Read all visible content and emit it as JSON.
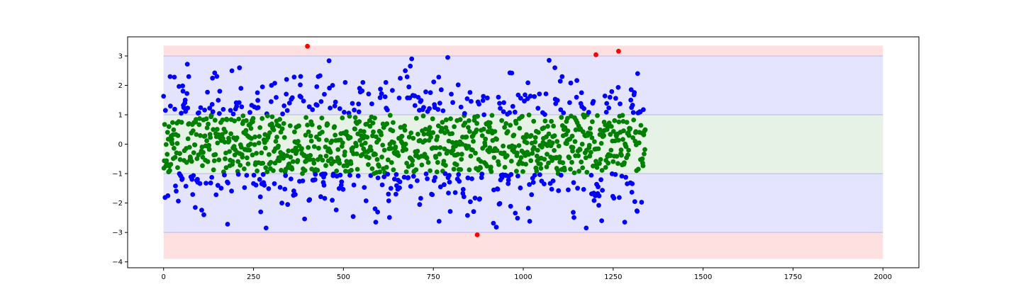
{
  "chart_data": {
    "type": "scatter",
    "title": "",
    "xlabel": "",
    "ylabel": "",
    "xlim": [
      -100,
      2100
    ],
    "ylim": [
      -4.2,
      3.65
    ],
    "x_ticks": [
      0,
      250,
      500,
      750,
      1000,
      1250,
      1500,
      1750,
      2000
    ],
    "y_ticks": [
      3,
      2,
      1,
      0,
      -1,
      -2,
      -3,
      -4
    ],
    "n_points": 1340,
    "bands": [
      {
        "y0": -3.9,
        "y1": 3.35,
        "x0": 0,
        "x1": 2000,
        "color": "#ffe0e0"
      },
      {
        "y0": -3.0,
        "y1": 3.0,
        "x0": 0,
        "x1": 2000,
        "color": "#e4e4ff"
      },
      {
        "y0": -1.0,
        "y1": 1.0,
        "x0": 0,
        "x1": 2000,
        "color": "#e6f2e6"
      }
    ],
    "colors": {
      "within_1": "#008000",
      "within_3": "#0000ff",
      "outlier": "#ff0000",
      "band_edge": "#b8b8e8"
    },
    "outliers": [
      {
        "x": 400,
        "y": 3.33
      },
      {
        "x": 872,
        "y": -3.08
      },
      {
        "x": 1202,
        "y": 3.04
      },
      {
        "x": 1265,
        "y": 3.16
      }
    ],
    "outer_points": [
      {
        "x": 5,
        "y": 1.15
      },
      {
        "x": 12,
        "y": -1.75
      },
      {
        "x": 18,
        "y": 2.3
      },
      {
        "x": 30,
        "y": 2.28
      },
      {
        "x": 66,
        "y": 2.72
      },
      {
        "x": 70,
        "y": 2.3
      },
      {
        "x": 88,
        "y": -2.15
      },
      {
        "x": 112,
        "y": -2.4
      },
      {
        "x": 178,
        "y": 2.2
      },
      {
        "x": 178,
        "y": -2.72
      },
      {
        "x": 215,
        "y": 1.9
      },
      {
        "x": 270,
        "y": -2.3
      },
      {
        "x": 275,
        "y": 1.95
      },
      {
        "x": 285,
        "y": -2.85
      },
      {
        "x": 345,
        "y": -2.05
      },
      {
        "x": 382,
        "y": 1.6
      },
      {
        "x": 430,
        "y": 2.3
      },
      {
        "x": 470,
        "y": 2.0
      },
      {
        "x": 505,
        "y": 2.1
      },
      {
        "x": 545,
        "y": 1.9
      },
      {
        "x": 590,
        "y": -2.65
      },
      {
        "x": 618,
        "y": 2.1
      },
      {
        "x": 672,
        "y": 2.5
      },
      {
        "x": 690,
        "y": 2.9
      },
      {
        "x": 765,
        "y": 2.28
      },
      {
        "x": 766,
        "y": -2.62
      },
      {
        "x": 790,
        "y": 2.95
      },
      {
        "x": 845,
        "y": -2.42
      },
      {
        "x": 925,
        "y": -2.82
      },
      {
        "x": 968,
        "y": 2.42
      },
      {
        "x": 1018,
        "y": 2.4
      },
      {
        "x": 1018,
        "y": -2.62
      },
      {
        "x": 1072,
        "y": 2.85
      },
      {
        "x": 1088,
        "y": 2.6
      },
      {
        "x": 1132,
        "y": 2.08
      },
      {
        "x": 1175,
        "y": -2.85
      },
      {
        "x": 1218,
        "y": -2.6
      },
      {
        "x": 1282,
        "y": -2.65
      },
      {
        "x": 1318,
        "y": 2.4
      },
      {
        "x": 1310,
        "y": -1.95
      }
    ]
  }
}
